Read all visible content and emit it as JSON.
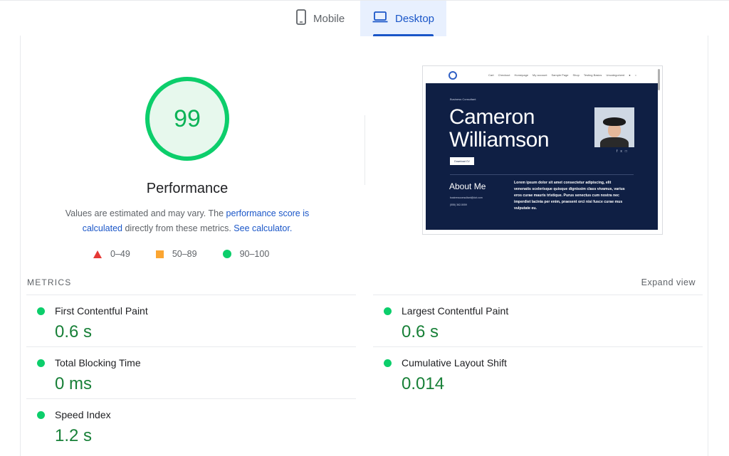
{
  "tabs": {
    "mobile": "Mobile",
    "desktop": "Desktop"
  },
  "score": {
    "value": "99",
    "label": "Performance",
    "color": "#0cce6b"
  },
  "note": {
    "text_before": "Values are estimated and may vary. The ",
    "link_score": "performance score is calculated",
    "text_middle": " directly from these metrics. ",
    "link_calc": "See calculator."
  },
  "legend": {
    "poor": "0–49",
    "average": "50–89",
    "good": "90–100"
  },
  "thumbnail": {
    "nav_items": [
      "Cart",
      "Checkout",
      "Homepage",
      "My account",
      "Sample Page",
      "Shop",
      "Testing Basics",
      "Uncategorized"
    ],
    "small_label": "Business Consultant",
    "name_line1": "Cameron",
    "name_line2": "Williamson",
    "button": "Download CV",
    "about_title": "About Me",
    "contact_email": "businessconsultant@dot.com",
    "contact_phone": "(555) 362-5059",
    "paragraph": "Lorem ipsum dolor sit amet consectetur adipiscing, elit venenatis scelerisque quisque dignissim class vivamus, varius eros curae mauris tristique. Purus senectus cum nostra nec imperdiet lacinia per enim, praesent orci nisi fusce curae mus vulputate eu."
  },
  "metrics": {
    "title": "METRICS",
    "expand": "Expand view",
    "items": [
      {
        "label": "First Contentful Paint",
        "value": "0.6 s"
      },
      {
        "label": "Largest Contentful Paint",
        "value": "0.6 s"
      },
      {
        "label": "Total Blocking Time",
        "value": "0 ms"
      },
      {
        "label": "Cumulative Layout Shift",
        "value": "0.014"
      },
      {
        "label": "Speed Index",
        "value": "1.2 s"
      }
    ]
  }
}
